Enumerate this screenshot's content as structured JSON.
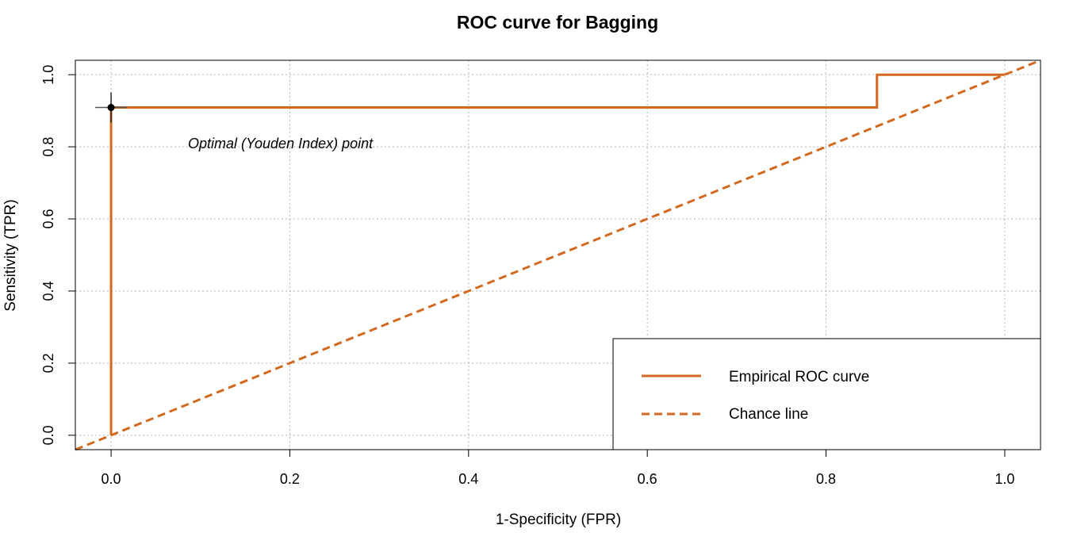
{
  "chart_data": {
    "type": "line",
    "title": "ROC curve for Bagging",
    "xlabel": "1-Specificity (FPR)",
    "ylabel": "Sensitivity (TPR)",
    "xlim": [
      -0.04,
      1.04
    ],
    "ylim": [
      -0.04,
      1.04
    ],
    "x_ticks": [
      0.0,
      0.2,
      0.4,
      0.6,
      0.8,
      1.0
    ],
    "x_tick_labels": [
      "0.0",
      "0.2",
      "0.4",
      "0.6",
      "0.8",
      "1.0"
    ],
    "y_ticks": [
      0.0,
      0.2,
      0.4,
      0.6,
      0.8,
      1.0
    ],
    "y_tick_labels": [
      "0.0",
      "0.2",
      "0.4",
      "0.6",
      "0.8",
      "1.0"
    ],
    "grid": true,
    "legend_position": "bottom-right",
    "series": [
      {
        "name": "Empirical ROC curve",
        "style": "solid",
        "color": "#D2691E",
        "x": [
          0.0,
          0.0,
          0.857,
          0.857,
          1.0
        ],
        "y": [
          0.0,
          0.909,
          0.909,
          1.0,
          1.0
        ]
      },
      {
        "name": "Chance line",
        "style": "dashed",
        "color": "#D2691E",
        "x": [
          -0.04,
          1.04
        ],
        "y": [
          -0.04,
          1.04
        ]
      }
    ],
    "optimal_point": {
      "x": 0.0,
      "y": 0.909,
      "label": "Optimal (Youden Index) point"
    }
  }
}
